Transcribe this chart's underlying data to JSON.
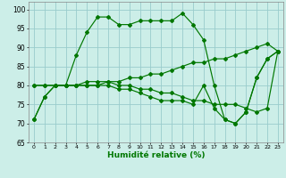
{
  "xlabel": "Humidité relative (%)",
  "background_color": "#cceee8",
  "grid_color": "#99cccc",
  "line_color": "#007700",
  "xlim": [
    -0.5,
    23.5
  ],
  "ylim": [
    65,
    102
  ],
  "yticks": [
    65,
    70,
    75,
    80,
    85,
    90,
    95,
    100
  ],
  "xticks": [
    0,
    1,
    2,
    3,
    4,
    5,
    6,
    7,
    8,
    9,
    10,
    11,
    12,
    13,
    14,
    15,
    16,
    17,
    18,
    19,
    20,
    21,
    22,
    23
  ],
  "series": [
    [
      71,
      77,
      80,
      80,
      88,
      94,
      98,
      98,
      96,
      96,
      97,
      97,
      97,
      97,
      99,
      96,
      92,
      80,
      71,
      70,
      73,
      82,
      87,
      89
    ],
    [
      80,
      80,
      80,
      80,
      80,
      81,
      81,
      81,
      81,
      82,
      82,
      83,
      83,
      84,
      85,
      86,
      86,
      87,
      87,
      88,
      89,
      90,
      91,
      89
    ],
    [
      80,
      80,
      80,
      80,
      80,
      80,
      80,
      81,
      80,
      80,
      79,
      79,
      78,
      78,
      77,
      76,
      76,
      75,
      75,
      75,
      74,
      73,
      74,
      89
    ],
    [
      71,
      77,
      80,
      80,
      80,
      80,
      80,
      80,
      79,
      79,
      78,
      77,
      76,
      76,
      76,
      75,
      80,
      74,
      71,
      70,
      73,
      82,
      87,
      89
    ]
  ]
}
